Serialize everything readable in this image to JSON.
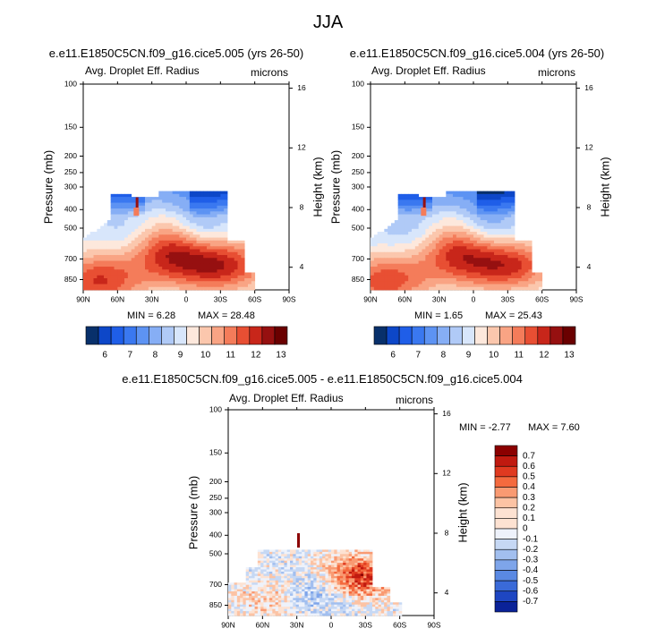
{
  "figure": {
    "title": "JJA"
  },
  "chart_data": [
    {
      "type": "heatmap",
      "title": "e.e11.E1850C5CN.f09_g16.cice5.005 (yrs 26-50)",
      "left_label": "Avg. Droplet Eff. Radius",
      "right_label": "microns",
      "xlabel": "",
      "ylabel": "Pressure (mb)",
      "y2label": "Height (km)",
      "x_ticks": [
        "90N",
        "60N",
        "30N",
        "0",
        "30S",
        "60S",
        "90S"
      ],
      "y_ticks": [
        "100",
        "150",
        "200",
        "250",
        "300",
        "400",
        "500",
        "700",
        "850"
      ],
      "y2_ticks": [
        "16",
        "12",
        "8",
        "4"
      ],
      "min_text": "MIN = 6.28",
      "max_text": "MAX = 28.48",
      "colorbar_labels": [
        "6",
        "7",
        "8",
        "9",
        "10",
        "11",
        "12",
        "13"
      ]
    },
    {
      "type": "heatmap",
      "title": "e.e11.E1850C5CN.f09_g16.cice5.004 (yrs 26-50)",
      "left_label": "Avg. Droplet Eff. Radius",
      "right_label": "microns",
      "xlabel": "",
      "ylabel": "Pressure (mb)",
      "y2label": "Height (km)",
      "x_ticks": [
        "90N",
        "60N",
        "30N",
        "0",
        "30S",
        "60S",
        "90S"
      ],
      "y_ticks": [
        "100",
        "150",
        "200",
        "250",
        "300",
        "400",
        "500",
        "700",
        "850"
      ],
      "y2_ticks": [
        "16",
        "12",
        "8",
        "4"
      ],
      "min_text": "MIN = 1.65",
      "max_text": "MAX = 25.43",
      "colorbar_labels": [
        "6",
        "7",
        "8",
        "9",
        "10",
        "11",
        "12",
        "13"
      ]
    },
    {
      "type": "heatmap",
      "title": "e.e11.E1850C5CN.f09_g16.cice5.005 - e.e11.E1850C5CN.f09_g16.cice5.004",
      "left_label": "Avg. Droplet Eff. Radius",
      "right_label": "microns",
      "xlabel": "",
      "ylabel": "Pressure (mb)",
      "y2label": "Height (km)",
      "x_ticks": [
        "90N",
        "60N",
        "30N",
        "0",
        "30S",
        "60S",
        "90S"
      ],
      "y_ticks": [
        "100",
        "150",
        "200",
        "250",
        "300",
        "400",
        "500",
        "700",
        "850"
      ],
      "y2_ticks": [
        "16",
        "12",
        "8",
        "4"
      ],
      "min_text": "MIN = -2.77",
      "max_text": "MAX = 7.60",
      "colorbar_labels": [
        "0.7",
        "0.6",
        "0.5",
        "0.4",
        "0.3",
        "0.2",
        "0.1",
        "0",
        "-0.1",
        "-0.2",
        "-0.3",
        "-0.4",
        "-0.5",
        "-0.6",
        "-0.7"
      ]
    }
  ],
  "colors": {
    "seq": [
      "#08306b",
      "#0d47c8",
      "#1f5ee8",
      "#3a78f0",
      "#5d93f3",
      "#86aef5",
      "#b0caf7",
      "#d8e6fb",
      "#fde8dc",
      "#fbc7ad",
      "#f9a484",
      "#f47c5a",
      "#e84f33",
      "#c8261a",
      "#961010",
      "#6a0000"
    ],
    "diff": [
      "#8b0000",
      "#c01a10",
      "#e03a20",
      "#f46a3e",
      "#f99a72",
      "#fcc3a4",
      "#fde2d2",
      "#eef2fb",
      "#c6d8f4",
      "#a2bfef",
      "#7ea5ea",
      "#5a89e3",
      "#3a6ad8",
      "#1e46c2",
      "#0a2298"
    ]
  }
}
